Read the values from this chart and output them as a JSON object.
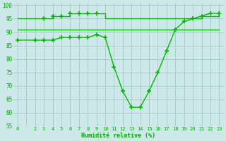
{
  "bg_color": "#cce8e8",
  "grid_color": "#aacccc",
  "line_color": "#00bb00",
  "xlabel": "Humidité relative (%)",
  "ylim": [
    55,
    101
  ],
  "xlim": [
    -0.5,
    23.5
  ],
  "yticks": [
    55,
    60,
    65,
    70,
    75,
    80,
    85,
    90,
    95,
    100
  ],
  "xticks": [
    0,
    1,
    2,
    3,
    4,
    5,
    6,
    7,
    8,
    9,
    10,
    11,
    12,
    13,
    14,
    15,
    16,
    17,
    18,
    19,
    20,
    21,
    22,
    23
  ],
  "xtick_labels": [
    "0",
    "",
    "2",
    "3",
    "4",
    "5",
    "6",
    "7",
    "8",
    "9",
    "10",
    "11",
    "12",
    "13",
    "14",
    "15",
    "16",
    "17",
    "18",
    "19",
    "20",
    "21",
    "22",
    "23"
  ],
  "line1_x": [
    0,
    2,
    3,
    4,
    5,
    6,
    7,
    8,
    9,
    10,
    11,
    12,
    13,
    14,
    15,
    16,
    17,
    18,
    19,
    20,
    21,
    22,
    23
  ],
  "line1_y": [
    95,
    95,
    95,
    96,
    96,
    97,
    97,
    97,
    97,
    95,
    95,
    95,
    95,
    95,
    95,
    95,
    95,
    95,
    95,
    95,
    96,
    96,
    97
  ],
  "line2_x": [
    0,
    2,
    3,
    4,
    5,
    6,
    7,
    8,
    9,
    10,
    11,
    12,
    13,
    14,
    15,
    16,
    17,
    18,
    19,
    20,
    21,
    22,
    23
  ],
  "line2_y": [
    91,
    91,
    91,
    91,
    91,
    91,
    91,
    91,
    91,
    91,
    91,
    91,
    91,
    91,
    91,
    91,
    91,
    91,
    91,
    91,
    91,
    91,
    91
  ],
  "line3_x": [
    0,
    2,
    3,
    4,
    5,
    6,
    7,
    8,
    9,
    10,
    11,
    12,
    13,
    14,
    15,
    16,
    17,
    18,
    19,
    20,
    21,
    22,
    23
  ],
  "line3_y": [
    87,
    87,
    87,
    87,
    88,
    88,
    88,
    88,
    89,
    88,
    77,
    68,
    62,
    62,
    68,
    75,
    83,
    91,
    94,
    95,
    96,
    97,
    97
  ],
  "line1_marker_x": [
    3,
    4,
    5,
    6,
    7,
    8,
    9
  ],
  "line1_marker_y": [
    95,
    96,
    96,
    97,
    97,
    97,
    97
  ]
}
